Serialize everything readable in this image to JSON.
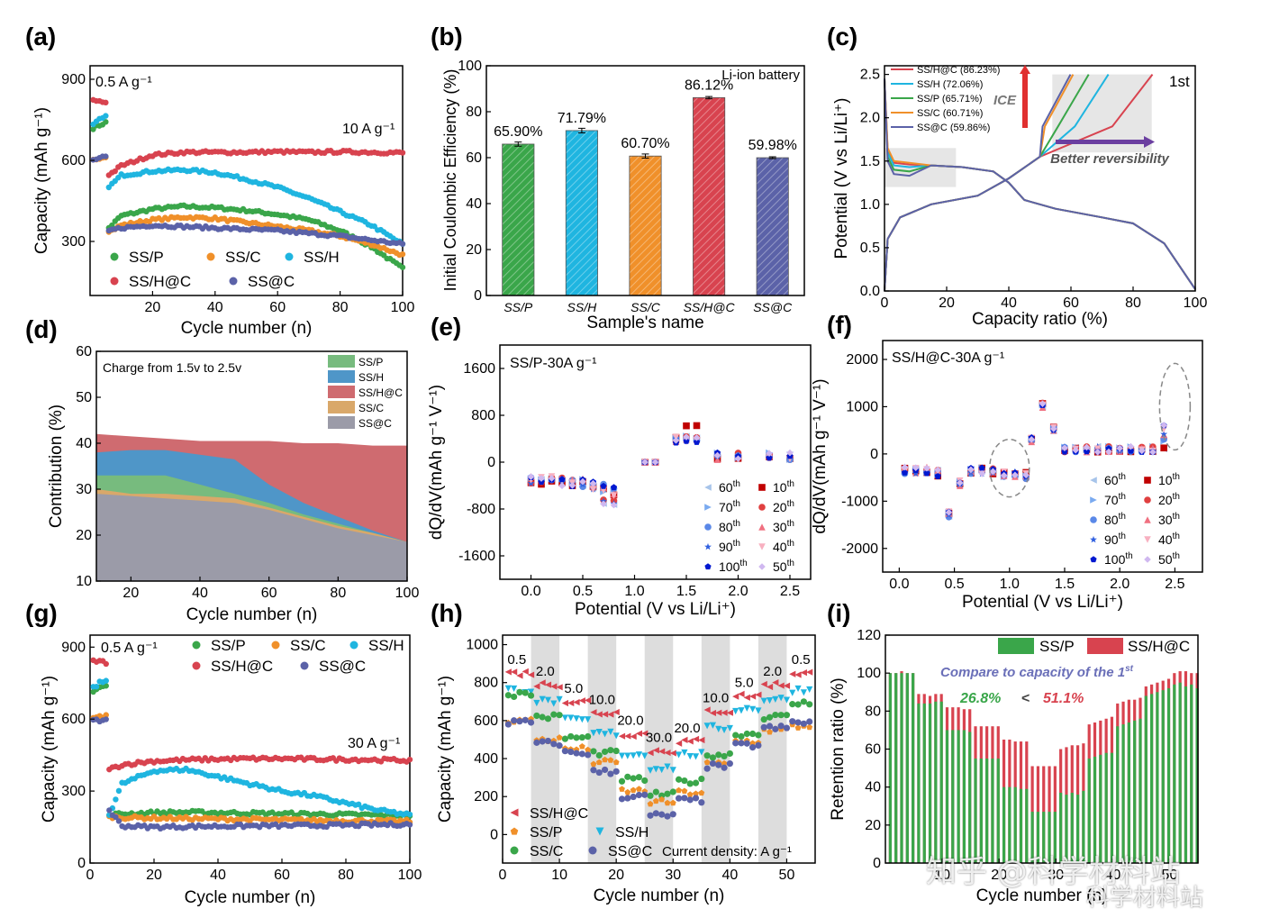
{
  "watermark": {
    "main": "知乎 @科学材料站",
    "sub": "科学材料站"
  },
  "colors": {
    "SS/P": "#3aa64a",
    "SS/H": "#1fb5e0",
    "SS/C": "#f0902a",
    "SS/H@C": "#d8434f",
    "SS@C": "#5b62a8",
    "dP": "#77bb7e",
    "dH": "#4f96c8",
    "dHC": "#cf6b70",
    "dC": "#d9a86a",
    "dSC": "#9b9ba8"
  },
  "chart_data": [
    {
      "id": "a",
      "panel_label": "(a)",
      "type": "scatter",
      "xlabel": "Cycle number (n)",
      "ylabel": "Capacity (mAh g⁻¹)",
      "xlim": [
        0,
        100
      ],
      "ylim": [
        100,
        950
      ],
      "xticks": [
        "20",
        "40",
        "60",
        "80",
        "100"
      ],
      "yticks": [
        "300",
        "600",
        "900"
      ],
      "annotations": [
        "0.5 A g⁻¹",
        "10 A g⁻¹"
      ],
      "legend": [
        "SS/P",
        "SS/C",
        "SS/H",
        "SS/H@C",
        "SS@C"
      ],
      "series": [
        {
          "name": "SS/P",
          "x": [
            1,
            2,
            3,
            4,
            5,
            6,
            10,
            20,
            30,
            40,
            50,
            60,
            70,
            80,
            90,
            100
          ],
          "values": [
            720,
            725,
            730,
            735,
            740,
            350,
            395,
            420,
            430,
            425,
            415,
            400,
            380,
            340,
            280,
            200
          ]
        },
        {
          "name": "SS/C",
          "x": [
            1,
            2,
            3,
            4,
            5,
            6,
            10,
            20,
            30,
            40,
            50,
            60,
            70,
            80,
            90,
            100
          ],
          "values": [
            600,
            605,
            610,
            612,
            615,
            335,
            360,
            380,
            390,
            385,
            370,
            355,
            340,
            320,
            290,
            250
          ]
        },
        {
          "name": "SS/H",
          "x": [
            1,
            2,
            3,
            4,
            5,
            6,
            10,
            20,
            30,
            40,
            50,
            60,
            70,
            80,
            90,
            100
          ],
          "values": [
            730,
            740,
            750,
            755,
            760,
            500,
            545,
            560,
            565,
            555,
            530,
            500,
            460,
            410,
            360,
            290
          ]
        },
        {
          "name": "SS/H@C",
          "x": [
            1,
            2,
            3,
            4,
            5,
            6,
            10,
            20,
            30,
            40,
            50,
            60,
            70,
            80,
            90,
            100
          ],
          "values": [
            820,
            822,
            818,
            816,
            815,
            545,
            580,
            620,
            630,
            630,
            630,
            632,
            630,
            632,
            630,
            628
          ]
        },
        {
          "name": "SS@C",
          "x": [
            1,
            2,
            3,
            4,
            5,
            6,
            10,
            20,
            30,
            40,
            50,
            60,
            70,
            80,
            90,
            100
          ],
          "values": [
            600,
            605,
            608,
            610,
            612,
            340,
            350,
            360,
            355,
            350,
            345,
            340,
            330,
            320,
            305,
            290
          ]
        }
      ]
    },
    {
      "id": "b",
      "panel_label": "(b)",
      "type": "bar",
      "xlabel": "Sample's name",
      "ylabel": "Initial Coulombic Efficiency (%)",
      "ylim": [
        0,
        100
      ],
      "yticks": [
        "0",
        "20",
        "40",
        "60",
        "80",
        "100"
      ],
      "annotation": "Li-ion battery",
      "categories": [
        "SS/P",
        "SS/H",
        "SS/C",
        "SS/H@C",
        "SS@C"
      ],
      "values": [
        65.9,
        71.79,
        60.7,
        86.12,
        59.98
      ],
      "value_labels": [
        "65.90%",
        "71.79%",
        "60.70%",
        "86.12%",
        "59.98%"
      ],
      "errors": [
        0.9,
        1.0,
        0.9,
        0.5,
        0.4
      ]
    },
    {
      "id": "c",
      "panel_label": "(c)",
      "type": "line",
      "xlabel": "Capacity ratio (%)",
      "ylabel": "Potential (V vs Li/Li⁺)",
      "xlim": [
        0,
        100
      ],
      "ylim": [
        0,
        2.6
      ],
      "xticks": [
        "0",
        "20",
        "40",
        "60",
        "80",
        "100"
      ],
      "yticks": [
        "0.0",
        "0.5",
        "1.0",
        "1.5",
        "2.0",
        "2.5"
      ],
      "annotations": [
        "1st",
        "ICE",
        "Better reversibility"
      ],
      "legend": [
        "SS/H@C (86.23%)",
        "SS/H (72.06%)",
        "SS/P (65.71%)",
        "SS/C (60.71%)",
        "SS@C (59.86%)"
      ],
      "series": [
        {
          "name": "SS/H@C",
          "ice": 86.23,
          "plateau": 1.48
        },
        {
          "name": "SS/H",
          "ice": 72.06,
          "plateau": 1.45
        },
        {
          "name": "SS/P",
          "ice": 65.71,
          "plateau": 1.4
        },
        {
          "name": "SS/C",
          "ice": 60.71,
          "plateau": 1.5
        },
        {
          "name": "SS@C",
          "ice": 59.86,
          "plateau": 1.35
        }
      ]
    },
    {
      "id": "d",
      "panel_label": "(d)",
      "type": "area",
      "xlabel": "Cycle number (n)",
      "ylabel": "Contribution (%)",
      "xlim": [
        10,
        100
      ],
      "ylim": [
        10,
        60
      ],
      "xticks": [
        "20",
        "40",
        "60",
        "80",
        "100"
      ],
      "yticks": [
        "10",
        "20",
        "30",
        "40",
        "50",
        "60"
      ],
      "annotation": "Charge from 1.5v to 2.5v",
      "legend": [
        "SS/P",
        "SS/H",
        "SS/H@C",
        "SS/C",
        "SS@C"
      ],
      "x": [
        10,
        20,
        30,
        40,
        50,
        60,
        70,
        80,
        90,
        100
      ],
      "series": [
        {
          "name": "SS/H@C",
          "values": [
            42,
            41.5,
            41,
            40.5,
            40.5,
            40.5,
            40,
            40,
            39.5,
            39.5
          ]
        },
        {
          "name": "SS/H",
          "values": [
            38,
            38.5,
            38.5,
            37.5,
            36.5,
            31,
            27,
            24,
            21,
            18.5
          ]
        },
        {
          "name": "SS/P",
          "values": [
            33,
            33,
            33,
            31,
            29,
            27,
            24.5,
            22.5,
            20.5,
            18.5
          ]
        },
        {
          "name": "SS/C",
          "values": [
            30,
            29,
            29,
            28.5,
            28,
            26,
            24,
            22,
            20.5,
            18.5
          ]
        },
        {
          "name": "SS@C",
          "values": [
            29,
            28.5,
            28,
            27.5,
            27,
            25.5,
            23.5,
            21.5,
            20,
            18.5
          ]
        }
      ]
    },
    {
      "id": "e",
      "panel_label": "(e)",
      "type": "scatter",
      "title": "SS/P-30A g⁻¹",
      "xlabel": "Potential (V vs Li/Li⁺)",
      "ylabel": "dQ/dV(mAh g⁻¹ V⁻¹)",
      "xlim": [
        -0.3,
        2.7
      ],
      "ylim": [
        -2000,
        2000
      ],
      "xticks": [
        "0.0",
        "0.5",
        "1.0",
        "1.5",
        "2.0",
        "2.5"
      ],
      "yticks": [
        "-1600",
        "-800",
        "0",
        "800",
        "1600"
      ],
      "legend": [
        "60th",
        "10th",
        "70th",
        "20th",
        "80th",
        "30th",
        "90th",
        "40th",
        "100th",
        "50th"
      ]
    },
    {
      "id": "f",
      "panel_label": "(f)",
      "type": "scatter",
      "title": "SS/H@C-30A g⁻¹",
      "xlabel": "Potential (V vs Li/Li⁺)",
      "ylabel": "dQ/dV(mAh g⁻¹ V⁻¹)",
      "xlim": [
        -0.15,
        2.75
      ],
      "ylim": [
        -2500,
        2400
      ],
      "xticks": [
        "0.0",
        "0.5",
        "1.0",
        "1.5",
        "2.0",
        "2.5"
      ],
      "yticks": [
        "-2000",
        "-1000",
        "0",
        "1000",
        "2000"
      ],
      "legend": [
        "60th",
        "10th",
        "70th",
        "20th",
        "80th",
        "30th",
        "90th",
        "40th",
        "100th",
        "50th"
      ]
    },
    {
      "id": "g",
      "panel_label": "(g)",
      "type": "scatter",
      "xlabel": "Cycle number (n)",
      "ylabel": "Capacity (mAh g⁻¹)",
      "xlim": [
        0,
        100
      ],
      "ylim": [
        0,
        950
      ],
      "xticks": [
        "0",
        "20",
        "40",
        "60",
        "80",
        "100"
      ],
      "yticks": [
        "0",
        "300",
        "600",
        "900"
      ],
      "annotations": [
        "0.5 A g⁻¹",
        "30 A g⁻¹"
      ],
      "legend": [
        "SS/P",
        "SS/C",
        "SS/H",
        "SS/H@C",
        "SS@C"
      ],
      "series": [
        {
          "name": "SS/P",
          "x": [
            1,
            2,
            3,
            4,
            5,
            6,
            10,
            20,
            30,
            40,
            50,
            60,
            70,
            80,
            90,
            100
          ],
          "values": [
            720,
            725,
            730,
            735,
            740,
            200,
            205,
            210,
            212,
            210,
            208,
            206,
            204,
            202,
            200,
            198
          ]
        },
        {
          "name": "SS/C",
          "x": [
            1,
            2,
            3,
            4,
            5,
            6,
            10,
            20,
            30,
            40,
            50,
            60,
            70,
            80,
            90,
            100
          ],
          "values": [
            600,
            605,
            610,
            612,
            615,
            195,
            190,
            188,
            186,
            184,
            182,
            180,
            178,
            176,
            175,
            174
          ]
        },
        {
          "name": "SS/H",
          "x": [
            1,
            2,
            3,
            4,
            5,
            6,
            10,
            20,
            30,
            40,
            50,
            60,
            70,
            80,
            90,
            100
          ],
          "values": [
            730,
            740,
            750,
            755,
            760,
            200,
            330,
            385,
            390,
            360,
            330,
            300,
            280,
            250,
            220,
            200
          ]
        },
        {
          "name": "SS/H@C",
          "x": [
            1,
            2,
            3,
            4,
            5,
            6,
            10,
            20,
            30,
            40,
            50,
            60,
            70,
            80,
            90,
            100
          ],
          "values": [
            840,
            842,
            840,
            838,
            836,
            390,
            410,
            425,
            430,
            433,
            435,
            435,
            433,
            432,
            430,
            428
          ]
        },
        {
          "name": "SS@C",
          "x": [
            1,
            2,
            3,
            4,
            5,
            6,
            10,
            20,
            30,
            40,
            50,
            60,
            70,
            80,
            90,
            100
          ],
          "values": [
            590,
            592,
            594,
            596,
            598,
            220,
            155,
            150,
            152,
            154,
            155,
            156,
            157,
            158,
            160,
            162
          ]
        }
      ]
    },
    {
      "id": "h",
      "panel_label": "(h)",
      "type": "scatter",
      "xlabel": "Cycle number (n)",
      "ylabel": "Capacity (mAh g⁻¹)",
      "xlim": [
        0,
        55
      ],
      "ylim": [
        -150,
        1050
      ],
      "xticks": [
        "0",
        "10",
        "20",
        "30",
        "40",
        "50"
      ],
      "yticks": [
        "0",
        "200",
        "400",
        "600",
        "800",
        "1000"
      ],
      "rate_labels": [
        "0.5",
        "2.0",
        "5.0",
        "10.0",
        "20.0",
        "30.0",
        "20.0",
        "10.0",
        "5.0",
        "2.0",
        "0.5"
      ],
      "annotation": "Current density:  A g⁻¹",
      "legend": [
        "SS/H@C",
        "SS/P",
        "SS/H",
        "SS/C",
        "SS@C"
      ],
      "series": [
        {
          "name": "SS/H@C",
          "values": [
            850,
            790,
            700,
            640,
            530,
            440,
            490,
            650,
            730,
            790,
            850
          ]
        },
        {
          "name": "SS/H",
          "values": [
            760,
            700,
            600,
            530,
            420,
            350,
            420,
            560,
            660,
            710,
            760
          ]
        },
        {
          "name": "SS/C",
          "values": [
            740,
            620,
            510,
            430,
            290,
            210,
            280,
            420,
            530,
            620,
            690
          ]
        },
        {
          "name": "SS/P",
          "values": [
            600,
            500,
            450,
            380,
            230,
            170,
            220,
            370,
            490,
            550,
            570
          ]
        },
        {
          "name": "SS@C",
          "values": [
            590,
            480,
            430,
            330,
            200,
            100,
            180,
            360,
            470,
            560,
            590
          ]
        }
      ]
    },
    {
      "id": "i",
      "panel_label": "(i)",
      "type": "bar",
      "xlabel": "Cycle number (n)",
      "ylabel": "Retention ratio (%)",
      "xlim": [
        0,
        55
      ],
      "ylim": [
        0,
        120
      ],
      "xticks": [
        "10",
        "20",
        "30",
        "40",
        "50"
      ],
      "yticks": [
        "0",
        "20",
        "40",
        "60",
        "80",
        "100",
        "120"
      ],
      "annotations": [
        "Compare to capacity of the 1st",
        "26.8% < 51.1%"
      ],
      "legend": [
        "SS/P",
        "SS/H@C"
      ],
      "series": [
        {
          "name": "SS/P",
          "values": [
            100,
            100,
            100,
            100,
            100,
            84,
            84,
            84,
            85,
            85,
            70,
            70,
            70,
            70,
            69,
            55,
            55,
            55,
            55,
            55,
            40,
            40,
            40,
            39,
            39,
            27,
            27,
            27,
            27,
            27,
            37,
            36,
            37,
            36,
            38,
            55,
            56,
            57,
            58,
            58,
            72,
            73,
            74,
            75,
            76,
            88,
            89,
            90,
            91,
            92,
            94,
            95,
            93,
            94,
            92
          ]
        },
        {
          "name": "SS/H@C",
          "values": [
            100,
            100,
            101,
            100,
            100,
            89,
            89,
            88,
            89,
            89,
            82,
            82,
            82,
            81,
            81,
            72,
            72,
            72,
            72,
            72,
            65,
            65,
            64,
            64,
            64,
            51,
            51,
            51,
            51,
            51,
            60,
            61,
            62,
            62,
            63,
            73,
            74,
            75,
            76,
            77,
            84,
            85,
            86,
            86,
            87,
            93,
            94,
            95,
            96,
            97,
            100,
            101,
            101,
            100,
            100
          ]
        }
      ]
    }
  ]
}
